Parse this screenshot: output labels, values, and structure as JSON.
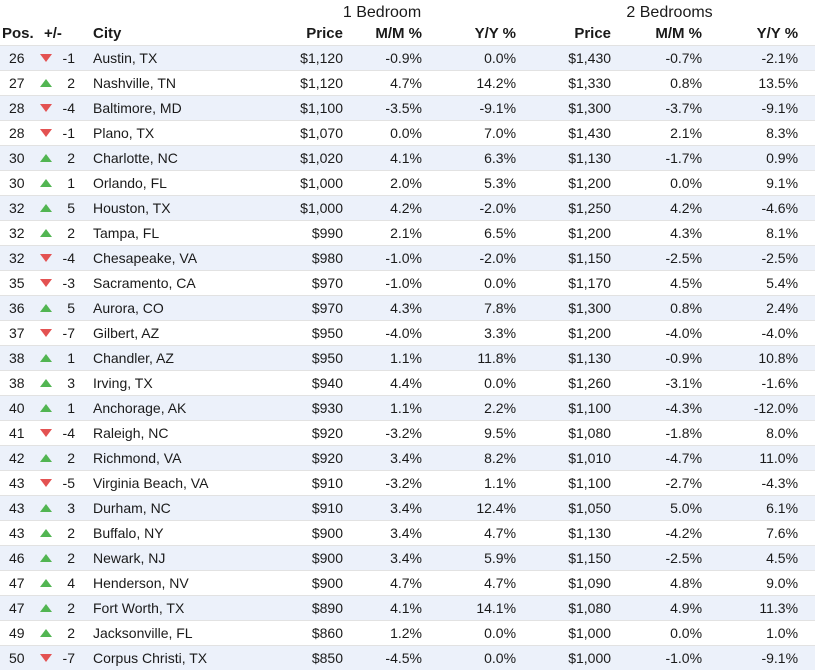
{
  "colors": {
    "up_arrow": "#52b552",
    "down_arrow": "#e35252",
    "stripe": "#ecf1fa"
  },
  "groups": {
    "one_bedroom": "1 Bedroom",
    "two_bedrooms": "2 Bedrooms"
  },
  "headers": {
    "pos": "Pos.",
    "change": "+/-",
    "city": "City",
    "price_1br": "Price",
    "mm_1br": "M/M %",
    "yy_1br": "Y/Y %",
    "price_2br": "Price",
    "mm_2br": "M/M %",
    "yy_2br": "Y/Y %"
  },
  "rows": [
    {
      "pos": "26",
      "dir": "down",
      "change": "-1",
      "city": "Austin, TX",
      "p1": "$1,120",
      "m1": "-0.9%",
      "y1": "0.0%",
      "p2": "$1,430",
      "m2": "-0.7%",
      "y2": "-2.1%"
    },
    {
      "pos": "27",
      "dir": "up",
      "change": "2",
      "city": "Nashville, TN",
      "p1": "$1,120",
      "m1": "4.7%",
      "y1": "14.2%",
      "p2": "$1,330",
      "m2": "0.8%",
      "y2": "13.5%"
    },
    {
      "pos": "28",
      "dir": "down",
      "change": "-4",
      "city": "Baltimore, MD",
      "p1": "$1,100",
      "m1": "-3.5%",
      "y1": "-9.1%",
      "p2": "$1,300",
      "m2": "-3.7%",
      "y2": "-9.1%"
    },
    {
      "pos": "28",
      "dir": "down",
      "change": "-1",
      "city": "Plano, TX",
      "p1": "$1,070",
      "m1": "0.0%",
      "y1": "7.0%",
      "p2": "$1,430",
      "m2": "2.1%",
      "y2": "8.3%"
    },
    {
      "pos": "30",
      "dir": "up",
      "change": "2",
      "city": "Charlotte, NC",
      "p1": "$1,020",
      "m1": "4.1%",
      "y1": "6.3%",
      "p2": "$1,130",
      "m2": "-1.7%",
      "y2": "0.9%"
    },
    {
      "pos": "30",
      "dir": "up",
      "change": "1",
      "city": "Orlando, FL",
      "p1": "$1,000",
      "m1": "2.0%",
      "y1": "5.3%",
      "p2": "$1,200",
      "m2": "0.0%",
      "y2": "9.1%"
    },
    {
      "pos": "32",
      "dir": "up",
      "change": "5",
      "city": "Houston, TX",
      "p1": "$1,000",
      "m1": "4.2%",
      "y1": "-2.0%",
      "p2": "$1,250",
      "m2": "4.2%",
      "y2": "-4.6%"
    },
    {
      "pos": "32",
      "dir": "up",
      "change": "2",
      "city": "Tampa, FL",
      "p1": "$990",
      "m1": "2.1%",
      "y1": "6.5%",
      "p2": "$1,200",
      "m2": "4.3%",
      "y2": "8.1%"
    },
    {
      "pos": "32",
      "dir": "down",
      "change": "-4",
      "city": "Chesapeake, VA",
      "p1": "$980",
      "m1": "-1.0%",
      "y1": "-2.0%",
      "p2": "$1,150",
      "m2": "-2.5%",
      "y2": "-2.5%"
    },
    {
      "pos": "35",
      "dir": "down",
      "change": "-3",
      "city": "Sacramento, CA",
      "p1": "$970",
      "m1": "-1.0%",
      "y1": "0.0%",
      "p2": "$1,170",
      "m2": "4.5%",
      "y2": "5.4%"
    },
    {
      "pos": "36",
      "dir": "up",
      "change": "5",
      "city": "Aurora, CO",
      "p1": "$970",
      "m1": "4.3%",
      "y1": "7.8%",
      "p2": "$1,300",
      "m2": "0.8%",
      "y2": "2.4%"
    },
    {
      "pos": "37",
      "dir": "down",
      "change": "-7",
      "city": "Gilbert, AZ",
      "p1": "$950",
      "m1": "-4.0%",
      "y1": "3.3%",
      "p2": "$1,200",
      "m2": "-4.0%",
      "y2": "-4.0%"
    },
    {
      "pos": "38",
      "dir": "up",
      "change": "1",
      "city": "Chandler, AZ",
      "p1": "$950",
      "m1": "1.1%",
      "y1": "11.8%",
      "p2": "$1,130",
      "m2": "-0.9%",
      "y2": "10.8%"
    },
    {
      "pos": "38",
      "dir": "up",
      "change": "3",
      "city": "Irving, TX",
      "p1": "$940",
      "m1": "4.4%",
      "y1": "0.0%",
      "p2": "$1,260",
      "m2": "-3.1%",
      "y2": "-1.6%"
    },
    {
      "pos": "40",
      "dir": "up",
      "change": "1",
      "city": "Anchorage, AK",
      "p1": "$930",
      "m1": "1.1%",
      "y1": "2.2%",
      "p2": "$1,100",
      "m2": "-4.3%",
      "y2": "-12.0%"
    },
    {
      "pos": "41",
      "dir": "down",
      "change": "-4",
      "city": "Raleigh, NC",
      "p1": "$920",
      "m1": "-3.2%",
      "y1": "9.5%",
      "p2": "$1,080",
      "m2": "-1.8%",
      "y2": "8.0%"
    },
    {
      "pos": "42",
      "dir": "up",
      "change": "2",
      "city": "Richmond, VA",
      "p1": "$920",
      "m1": "3.4%",
      "y1": "8.2%",
      "p2": "$1,010",
      "m2": "-4.7%",
      "y2": "11.0%"
    },
    {
      "pos": "43",
      "dir": "down",
      "change": "-5",
      "city": "Virginia Beach, VA",
      "p1": "$910",
      "m1": "-3.2%",
      "y1": "1.1%",
      "p2": "$1,100",
      "m2": "-2.7%",
      "y2": "-4.3%"
    },
    {
      "pos": "43",
      "dir": "up",
      "change": "3",
      "city": "Durham, NC",
      "p1": "$910",
      "m1": "3.4%",
      "y1": "12.4%",
      "p2": "$1,050",
      "m2": "5.0%",
      "y2": "6.1%"
    },
    {
      "pos": "43",
      "dir": "up",
      "change": "2",
      "city": "Buffalo, NY",
      "p1": "$900",
      "m1": "3.4%",
      "y1": "4.7%",
      "p2": "$1,130",
      "m2": "-4.2%",
      "y2": "7.6%"
    },
    {
      "pos": "46",
      "dir": "up",
      "change": "2",
      "city": "Newark, NJ",
      "p1": "$900",
      "m1": "3.4%",
      "y1": "5.9%",
      "p2": "$1,150",
      "m2": "-2.5%",
      "y2": "4.5%"
    },
    {
      "pos": "47",
      "dir": "up",
      "change": "4",
      "city": "Henderson, NV",
      "p1": "$900",
      "m1": "4.7%",
      "y1": "4.7%",
      "p2": "$1,090",
      "m2": "4.8%",
      "y2": "9.0%"
    },
    {
      "pos": "47",
      "dir": "up",
      "change": "2",
      "city": "Fort Worth, TX",
      "p1": "$890",
      "m1": "4.1%",
      "y1": "14.1%",
      "p2": "$1,080",
      "m2": "4.9%",
      "y2": "11.3%"
    },
    {
      "pos": "49",
      "dir": "up",
      "change": "2",
      "city": "Jacksonville, FL",
      "p1": "$860",
      "m1": "1.2%",
      "y1": "0.0%",
      "p2": "$1,000",
      "m2": "0.0%",
      "y2": "1.0%"
    },
    {
      "pos": "50",
      "dir": "down",
      "change": "-7",
      "city": "Corpus Christi, TX",
      "p1": "$850",
      "m1": "-4.5%",
      "y1": "0.0%",
      "p2": "$1,000",
      "m2": "-1.0%",
      "y2": "-9.1%"
    }
  ]
}
